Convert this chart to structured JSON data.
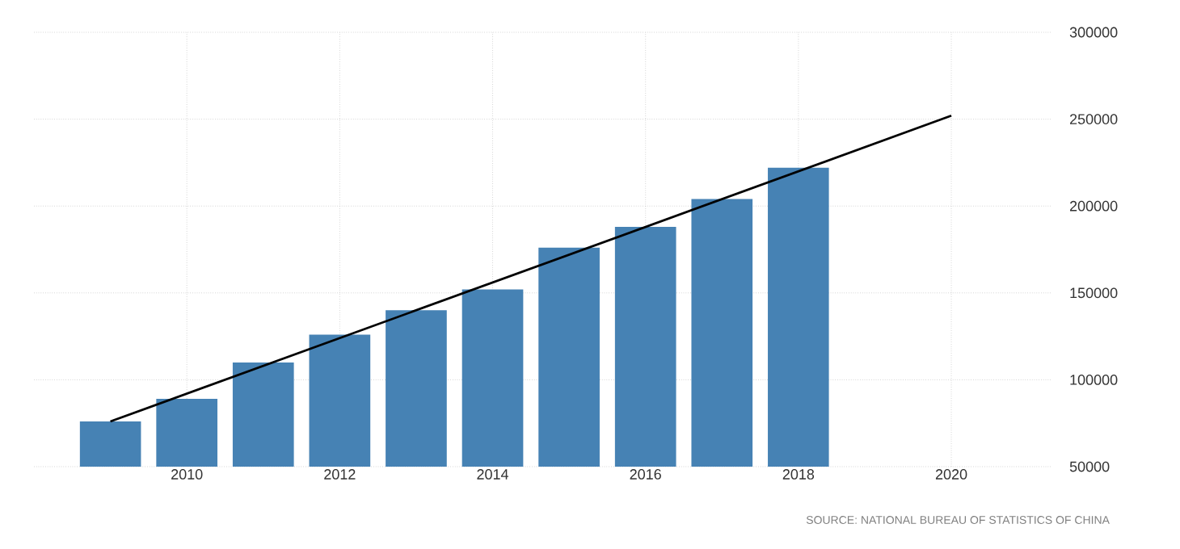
{
  "chart_data": {
    "type": "bar",
    "x": [
      2009,
      2010,
      2011,
      2012,
      2013,
      2014,
      2015,
      2016,
      2017,
      2018
    ],
    "series": [
      {
        "color": "#4682b4",
        "values": [
          76000,
          89000,
          110000,
          126000,
          140000,
          152000,
          176000,
          188000,
          204000,
          222000
        ]
      },
      {
        "type": "line",
        "color": "#000000",
        "x": [
          2009,
          2020
        ],
        "values": [
          76000,
          252000
        ]
      }
    ],
    "xlim": [
      2008,
      2021.3
    ],
    "xticks": [
      2010,
      2012,
      2014,
      2016,
      2018,
      2020
    ],
    "ylim": [
      50000,
      300000
    ],
    "yticks": [
      50000,
      100000,
      150000,
      200000,
      250000,
      300000
    ],
    "grid": true,
    "annotations": [
      "SOURCE: NATIONAL BUREAU OF STATISTICS OF CHINA"
    ]
  }
}
